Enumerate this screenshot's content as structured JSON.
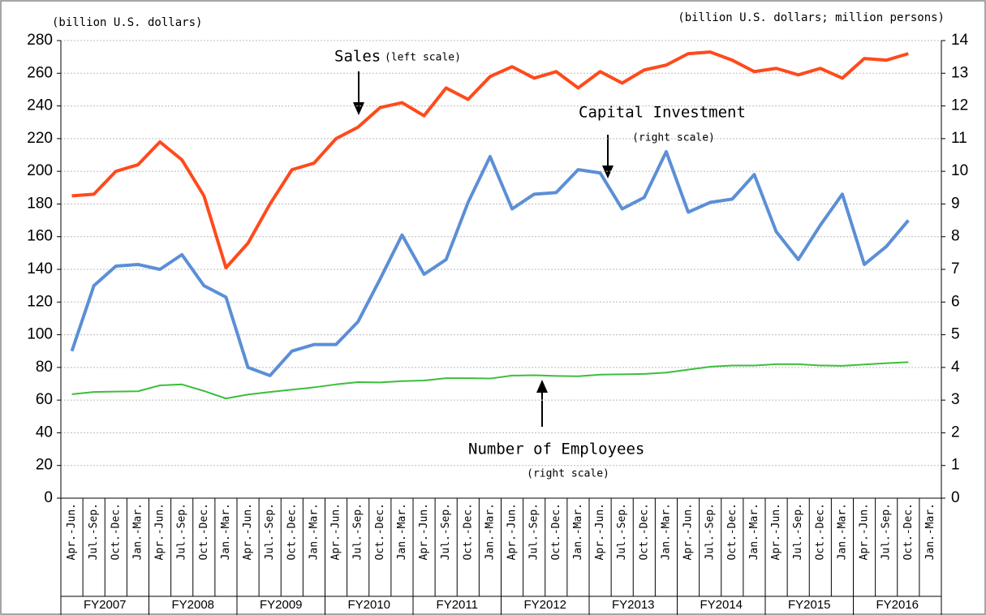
{
  "chart_data": {
    "type": "line",
    "ylabel": "(billion U.S. dollars)",
    "y2label": "(billion U.S. dollars; million persons)",
    "categories": [
      "Apr.-Jun.",
      "Jul.-Sep.",
      "Oct.-Dec.",
      "Jan.-Mar.",
      "Apr.-Jun.",
      "Jul.-Sep.",
      "Oct.-Dec.",
      "Jan.-Mar.",
      "Apr.-Jun.",
      "Jul.-Sep.",
      "Oct.-Dec.",
      "Jan.-Mar.",
      "Apr.-Jun.",
      "Jul.-Sep.",
      "Oct.-Dec.",
      "Jan.-Mar.",
      "Apr.-Jun.",
      "Jul.-Sep.",
      "Oct.-Dec.",
      "Jan.-Mar.",
      "Apr.-Jun.",
      "Jul.-Sep.",
      "Oct.-Dec.",
      "Jan.-Mar.",
      "Apr.-Jun.",
      "Jul.-Sep.",
      "Oct.-Dec.",
      "Jan.-Mar.",
      "Apr.-Jun.",
      "Jul.-Sep.",
      "Oct.-Dec.",
      "Jan.-Mar.",
      "Apr.-Jun.",
      "Jul.-Sep.",
      "Oct.-Dec.",
      "Jan.-Mar.",
      "Apr.-Jun.",
      "Jul.-Sep.",
      "Oct.-Dec.",
      "Jan.-Mar."
    ],
    "fiscal_years": [
      "FY2007",
      "FY2008",
      "FY2009",
      "FY2010",
      "FY2011",
      "FY2012",
      "FY2013",
      "FY2014",
      "FY2015",
      "FY2016"
    ],
    "ylim": [
      0,
      280
    ],
    "yticks": [
      0,
      20,
      40,
      60,
      80,
      100,
      120,
      140,
      160,
      180,
      200,
      220,
      240,
      260,
      280
    ],
    "y2lim": [
      0,
      14
    ],
    "y2ticks": [
      0,
      1,
      2,
      3,
      4,
      5,
      6,
      7,
      8,
      9,
      10,
      11,
      12,
      13,
      14
    ],
    "grid": true,
    "series": [
      {
        "name": "Sales",
        "note": "(left scale)",
        "color": "#ff4a1c",
        "axis": "y",
        "values": [
          185,
          186,
          200,
          204,
          218,
          207,
          185,
          141,
          156,
          180,
          201,
          205,
          220,
          227,
          239,
          242,
          234,
          251,
          244,
          258,
          264,
          257,
          261,
          251,
          261,
          254,
          262,
          265,
          272,
          273,
          268,
          261,
          263,
          259,
          263,
          257,
          269,
          268,
          272,
          null
        ]
      },
      {
        "name": "Capital Investment",
        "note": "(right scale)",
        "color": "#5b8fd6",
        "axis": "y2",
        "values": [
          4.5,
          6.5,
          7.1,
          7.15,
          7.0,
          7.45,
          6.5,
          6.15,
          4.0,
          3.75,
          4.5,
          4.7,
          4.7,
          5.4,
          6.7,
          8.05,
          6.85,
          7.3,
          9.05,
          10.45,
          8.85,
          9.3,
          9.35,
          10.05,
          9.95,
          8.85,
          9.2,
          10.6,
          8.75,
          9.05,
          9.15,
          9.9,
          8.15,
          7.3,
          8.35,
          9.3,
          7.15,
          7.7,
          8.5,
          null
        ]
      },
      {
        "name": "Number of Employees",
        "note": "(right scale)",
        "color": "#3cbe3c",
        "axis": "y2",
        "values": [
          3.18,
          3.25,
          3.26,
          3.27,
          3.45,
          3.48,
          3.28,
          3.05,
          3.17,
          3.25,
          3.32,
          3.39,
          3.48,
          3.55,
          3.54,
          3.58,
          3.6,
          3.67,
          3.67,
          3.66,
          3.75,
          3.76,
          3.74,
          3.73,
          3.78,
          3.79,
          3.8,
          3.84,
          3.93,
          4.02,
          4.06,
          4.06,
          4.1,
          4.1,
          4.06,
          4.05,
          4.09,
          4.13,
          4.16,
          null
        ]
      }
    ]
  }
}
